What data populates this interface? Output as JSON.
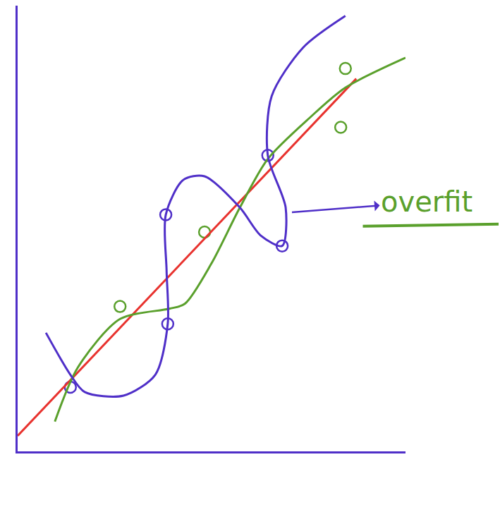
{
  "chart_data": {
    "type": "scatter",
    "tick_labels": false,
    "grid": false,
    "xlim": [
      0,
      100
    ],
    "ylim": [
      0,
      100
    ],
    "series": [
      {
        "type": "scatter",
        "color": "#5aa02c",
        "marker": "circle-open",
        "x": [
          26.4,
          48.2,
          83.3,
          84.5
        ],
        "values": [
          32.5,
          49.2,
          72.7,
          85.9
        ]
      },
      {
        "type": "scatter",
        "color": "#4f2fc8",
        "marker": "circle-open",
        "x": [
          13.6,
          38.2,
          38.7,
          64.5,
          68.2
        ],
        "values": [
          14.4,
          53.1,
          28.6,
          66.4,
          46.1
        ]
      },
      {
        "type": "line",
        "color": "#e8322e",
        "x": [
          0,
          87.3
        ],
        "values": [
          3.5,
          83.6
        ]
      },
      {
        "type": "line",
        "color": "#5aa02c",
        "x": [
          9.6,
          15.5,
          26.4,
          39.1,
          43.1,
          50.0,
          57.3,
          64.5,
          75.5,
          84.5,
          100
        ],
        "values": [
          6.7,
          18.8,
          29.7,
          32.0,
          33.1,
          42.2,
          54.7,
          65.6,
          75.0,
          81.6,
          88.3
        ]
      },
      {
        "type": "line",
        "color": "#4f2fc8",
        "x": [
          7.3,
          13.6,
          17.3,
          27.3,
          35.5,
          38.7,
          38.4,
          38.2,
          42.7,
          48.2,
          57.3,
          62.7,
          68.2,
          69.1,
          64.5,
          65.5,
          73.6,
          84.5
        ],
        "values": [
          26.6,
          17.2,
          13.3,
          12.5,
          17.2,
          28.6,
          40.6,
          53.1,
          60.9,
          61.7,
          54.7,
          48.4,
          46.1,
          54.7,
          66.4,
          79.7,
          90.6,
          97.7
        ]
      }
    ],
    "annotations": [
      {
        "text": "overfit",
        "x": 70,
        "y": 53.6,
        "color": "#5aa02c"
      }
    ]
  }
}
